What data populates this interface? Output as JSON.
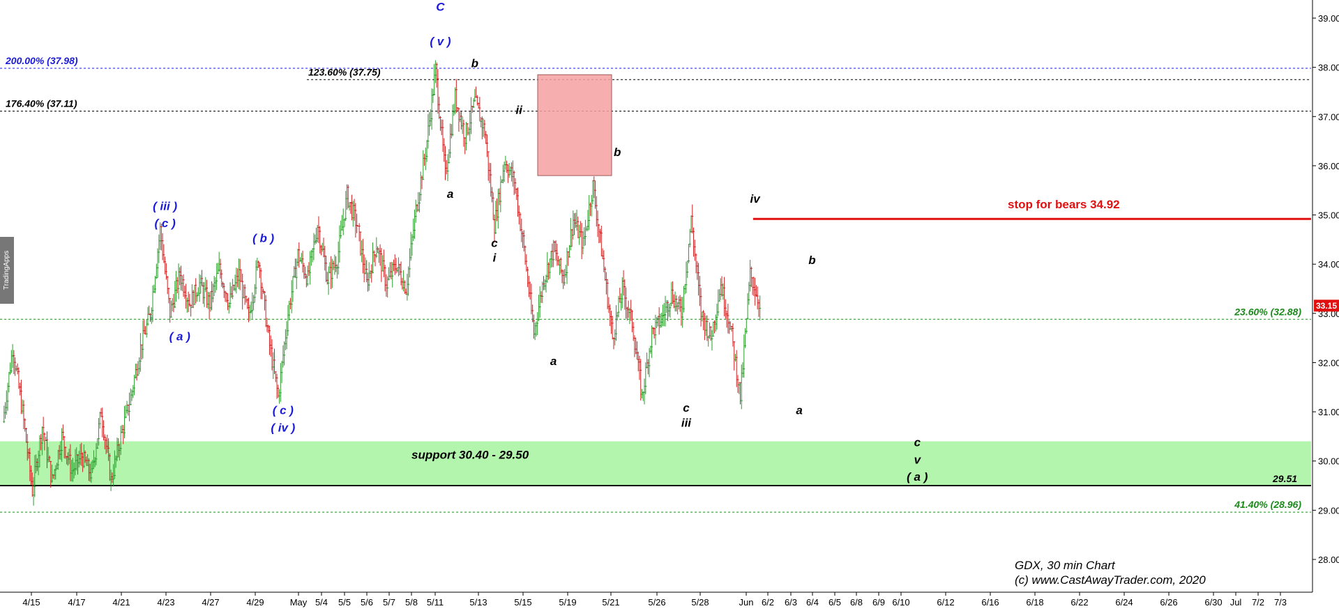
{
  "chart_data": {
    "type": "candlestick",
    "symbol": "GDX",
    "watermark": [
      "GDX, 30 min Chart",
      "(c) www.CastAwayTrader.com, 2020"
    ],
    "brand": "TradingApps",
    "last_price": "33.15",
    "y_axis": {
      "min": 27.33,
      "max": 39.4,
      "ticks": [
        "28.00",
        "29.00",
        "30.00",
        "31.00",
        "32.00",
        "33.00",
        "34.00",
        "35.00",
        "36.00",
        "37.00",
        "38.00",
        "39.00"
      ]
    },
    "x_axis": {
      "ticks": [
        "4/15",
        "4/17",
        "4/21",
        "4/23",
        "4/27",
        "4/29",
        "May",
        "5/4",
        "5/5",
        "5/6",
        "5/7",
        "5/8",
        "5/11",
        "5/13",
        "5/15",
        "5/19",
        "5/21",
        "5/26",
        "5/28",
        "Jun",
        "6/2",
        "6/3",
        "6/4",
        "6/5",
        "6/8",
        "6/9",
        "6/10",
        "6/12",
        "6/16",
        "6/18",
        "6/22",
        "6/24",
        "6/26",
        "6/30",
        "Jul",
        "7/2",
        "7/3"
      ]
    },
    "levels": [
      {
        "label": "200.00% (37.98)",
        "value": 37.98,
        "color": "#1a1adb",
        "side": "left"
      },
      {
        "label": "123.60% (37.75)",
        "value": 37.75,
        "color": "#000000",
        "side": "mid"
      },
      {
        "label": "176.40% (37.11)",
        "value": 37.11,
        "color": "#000000",
        "side": "left"
      },
      {
        "label": "23.60% (32.88)",
        "value": 32.88,
        "color": "#1b8a1b",
        "side": "right"
      },
      {
        "label": "41.40% (28.96)",
        "value": 28.96,
        "color": "#1b8a1b",
        "side": "right"
      }
    ],
    "support_zone": {
      "label": "support 30.40 - 29.50",
      "high": 30.4,
      "low": 29.5,
      "marker": "29.51"
    },
    "stop": {
      "label": "stop for bears 34.92",
      "value": 34.92
    },
    "highlight_box": {
      "high": 37.85,
      "low": 35.8
    },
    "price_path": [
      [
        0,
        30.8
      ],
      [
        1,
        32.3
      ],
      [
        2,
        31.0
      ],
      [
        3,
        29.4
      ],
      [
        4,
        30.7
      ],
      [
        5,
        29.6
      ],
      [
        6,
        30.5
      ],
      [
        7,
        29.8
      ],
      [
        8,
        30.1
      ],
      [
        9,
        29.7
      ],
      [
        10,
        31.0
      ],
      [
        11,
        29.6
      ],
      [
        12,
        30.5
      ],
      [
        13,
        31.3
      ],
      [
        14,
        32.3
      ],
      [
        15,
        33.0
      ],
      [
        16,
        34.7
      ],
      [
        17,
        33.0
      ],
      [
        18,
        33.8
      ],
      [
        19,
        33.2
      ],
      [
        20,
        33.6
      ],
      [
        21,
        33.2
      ],
      [
        22,
        33.9
      ],
      [
        23,
        33.2
      ],
      [
        24,
        33.8
      ],
      [
        25,
        32.9
      ],
      [
        26,
        34.1
      ],
      [
        27,
        32.5
      ],
      [
        28,
        31.3
      ],
      [
        29,
        33.0
      ],
      [
        30,
        34.2
      ],
      [
        31,
        33.7
      ],
      [
        32,
        34.8
      ],
      [
        33,
        33.7
      ],
      [
        34,
        34.1
      ],
      [
        35,
        35.4
      ],
      [
        36,
        34.8
      ],
      [
        37,
        33.6
      ],
      [
        38,
        34.4
      ],
      [
        39,
        33.6
      ],
      [
        40,
        34.0
      ],
      [
        41,
        33.5
      ],
      [
        42,
        35.1
      ],
      [
        43,
        36.3
      ],
      [
        44,
        37.95
      ],
      [
        45,
        35.8
      ],
      [
        46,
        37.4
      ],
      [
        47,
        36.6
      ],
      [
        48,
        37.3
      ],
      [
        49,
        36.7
      ],
      [
        50,
        34.8
      ],
      [
        51,
        36.1
      ],
      [
        52,
        35.7
      ],
      [
        53,
        34.3
      ],
      [
        54,
        32.6
      ],
      [
        55,
        33.7
      ],
      [
        56,
        34.3
      ],
      [
        57,
        33.7
      ],
      [
        58,
        34.9
      ],
      [
        59,
        34.4
      ],
      [
        60,
        35.6
      ],
      [
        61,
        34.1
      ],
      [
        62,
        32.5
      ],
      [
        63,
        33.5
      ],
      [
        64,
        32.8
      ],
      [
        65,
        31.3
      ],
      [
        66,
        32.6
      ],
      [
        67,
        32.9
      ],
      [
        68,
        33.4
      ],
      [
        69,
        33.0
      ],
      [
        70,
        34.9
      ],
      [
        71,
        33.0
      ],
      [
        72,
        32.5
      ],
      [
        73,
        33.6
      ],
      [
        74,
        32.7
      ],
      [
        75,
        31.3
      ],
      [
        76,
        33.8
      ],
      [
        77,
        33.15
      ]
    ],
    "wave_labels": [
      {
        "text": "C",
        "color": "#1a1adb",
        "value": 39.15,
        "x_index": 44.5
      },
      {
        "text": "( v )",
        "color": "#1a1adb",
        "value": 38.45,
        "x_index": 44.5
      },
      {
        "text": "( iii )",
        "color": "#1a1adb",
        "value": 35.1,
        "x_index": 16.5
      },
      {
        "text": "( c )",
        "color": "#1a1adb",
        "value": 34.75,
        "x_index": 16.5
      },
      {
        "text": "( a )",
        "color": "#1a1adb",
        "value": 32.45,
        "x_index": 18.0
      },
      {
        "text": "( b )",
        "color": "#1a1adb",
        "value": 34.45,
        "x_index": 26.5
      },
      {
        "text": "( c )",
        "color": "#1a1adb",
        "value": 30.95,
        "x_index": 28.5
      },
      {
        "text": "( iv )",
        "color": "#1a1adb",
        "value": 30.6,
        "x_index": 28.5
      },
      {
        "text": "b",
        "color": "#000000",
        "value": 38.0,
        "x_index": 48.0
      },
      {
        "text": "ii",
        "color": "#000000",
        "value": 37.05,
        "x_index": 52.5
      },
      {
        "text": "a",
        "color": "#000000",
        "value": 35.35,
        "x_index": 45.5
      },
      {
        "text": "c",
        "color": "#000000",
        "value": 34.35,
        "x_index": 50.0
      },
      {
        "text": "i",
        "color": "#000000",
        "value": 34.05,
        "x_index": 50.0
      },
      {
        "text": "b",
        "color": "#000000",
        "value": 36.2,
        "x_index": 62.5
      },
      {
        "text": "a",
        "color": "#000000",
        "value": 31.95,
        "x_index": 56.0
      },
      {
        "text": "iv",
        "color": "#000000",
        "value": 35.25,
        "x_index": 76.5
      },
      {
        "text": "c",
        "color": "#000000",
        "value": 31.0,
        "x_index": 69.5
      },
      {
        "text": "iii",
        "color": "#000000",
        "value": 30.7,
        "x_index": 69.5
      },
      {
        "text": "b",
        "color": "#000000",
        "value": 34.0,
        "x_index": 82.3
      },
      {
        "text": "a",
        "color": "#000000",
        "value": 30.95,
        "x_index": 81.0
      },
      {
        "text": "c",
        "color": "#000000",
        "value": 30.3,
        "x_index": 93.0
      },
      {
        "text": "v",
        "color": "#000000",
        "value": 29.95,
        "x_index": 93.0
      },
      {
        "text": "( a )",
        "color": "#000000",
        "value": 29.6,
        "x_index": 93.0
      }
    ]
  }
}
